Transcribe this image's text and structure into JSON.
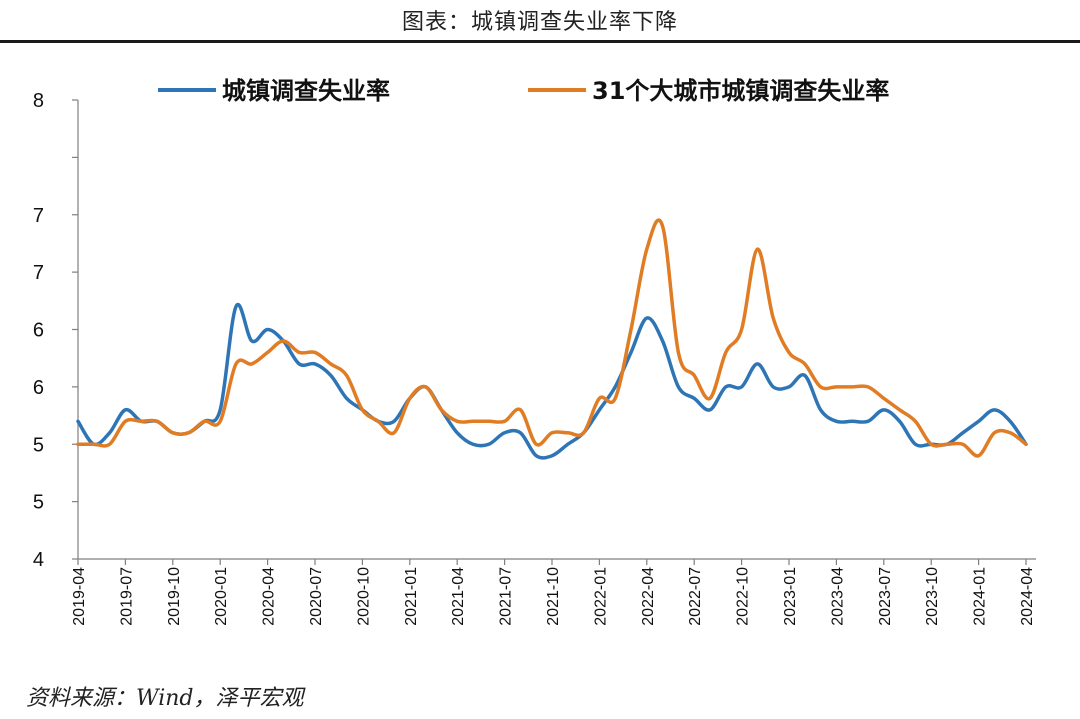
{
  "header": {
    "title": "图表：城镇调查失业率下降"
  },
  "footer": {
    "source": "资料来源：Wind，泽平宏观"
  },
  "chart_data": {
    "type": "line",
    "title": "",
    "xlabel": "",
    "ylabel": "",
    "ylim": [
      4,
      8
    ],
    "yticks": [
      4,
      4.5,
      5,
      5.5,
      6,
      6.5,
      7,
      7.5,
      8
    ],
    "ytick_labels": [
      "4",
      "5",
      "5",
      "6",
      "6",
      "7",
      "7",
      "8"
    ],
    "xtick_labels": [
      "2019-04",
      "2019-07",
      "2019-10",
      "2020-01",
      "2020-04",
      "2020-07",
      "2020-10",
      "2021-01",
      "2021-04",
      "2021-07",
      "2021-10",
      "2022-01",
      "2022-04",
      "2022-07",
      "2022-10",
      "2023-01",
      "2023-04",
      "2023-07",
      "2023-10",
      "2024-01",
      "2024-04"
    ],
    "legend_position": "top",
    "grid": false,
    "x": [
      "2019-04",
      "2019-05",
      "2019-06",
      "2019-07",
      "2019-08",
      "2019-09",
      "2019-10",
      "2019-11",
      "2019-12",
      "2020-01",
      "2020-02",
      "2020-03",
      "2020-04",
      "2020-05",
      "2020-06",
      "2020-07",
      "2020-08",
      "2020-09",
      "2020-10",
      "2020-11",
      "2020-12",
      "2021-01",
      "2021-02",
      "2021-03",
      "2021-04",
      "2021-05",
      "2021-06",
      "2021-07",
      "2021-08",
      "2021-09",
      "2021-10",
      "2021-11",
      "2021-12",
      "2022-01",
      "2022-02",
      "2022-03",
      "2022-04",
      "2022-05",
      "2022-06",
      "2022-07",
      "2022-08",
      "2022-09",
      "2022-10",
      "2022-11",
      "2022-12",
      "2023-01",
      "2023-02",
      "2023-03",
      "2023-04",
      "2023-05",
      "2023-06",
      "2023-07",
      "2023-08",
      "2023-09",
      "2023-10",
      "2023-11",
      "2023-12",
      "2024-01",
      "2024-02",
      "2024-03",
      "2024-04"
    ],
    "series": [
      {
        "name": "城镇调查失业率",
        "color": "#2e75b6",
        "values": [
          5.2,
          5.0,
          5.1,
          5.3,
          5.2,
          5.2,
          5.1,
          5.1,
          5.2,
          5.3,
          6.2,
          5.9,
          6.0,
          5.9,
          5.7,
          5.7,
          5.6,
          5.4,
          5.3,
          5.2,
          5.2,
          5.4,
          5.5,
          5.3,
          5.1,
          5.0,
          5.0,
          5.1,
          5.1,
          4.9,
          4.9,
          5.0,
          5.1,
          5.3,
          5.5,
          5.8,
          6.1,
          5.9,
          5.5,
          5.4,
          5.3,
          5.5,
          5.5,
          5.7,
          5.5,
          5.5,
          5.6,
          5.3,
          5.2,
          5.2,
          5.2,
          5.3,
          5.2,
          5.0,
          5.0,
          5.0,
          5.1,
          5.2,
          5.3,
          5.2,
          5.0
        ]
      },
      {
        "name": "31个大城市城镇调查失业率",
        "color": "#e07c24",
        "values": [
          5.0,
          5.0,
          5.0,
          5.2,
          5.2,
          5.2,
          5.1,
          5.1,
          5.2,
          5.2,
          5.7,
          5.7,
          5.8,
          5.9,
          5.8,
          5.8,
          5.7,
          5.6,
          5.3,
          5.2,
          5.1,
          5.4,
          5.5,
          5.3,
          5.2,
          5.2,
          5.2,
          5.2,
          5.3,
          5.0,
          5.1,
          5.1,
          5.1,
          5.4,
          5.4,
          6.0,
          6.7,
          6.9,
          5.8,
          5.6,
          5.4,
          5.8,
          6.0,
          6.7,
          6.1,
          5.8,
          5.7,
          5.5,
          5.5,
          5.5,
          5.5,
          5.4,
          5.3,
          5.2,
          5.0,
          5.0,
          5.0,
          4.9,
          5.1,
          5.1,
          5.0
        ]
      }
    ]
  }
}
